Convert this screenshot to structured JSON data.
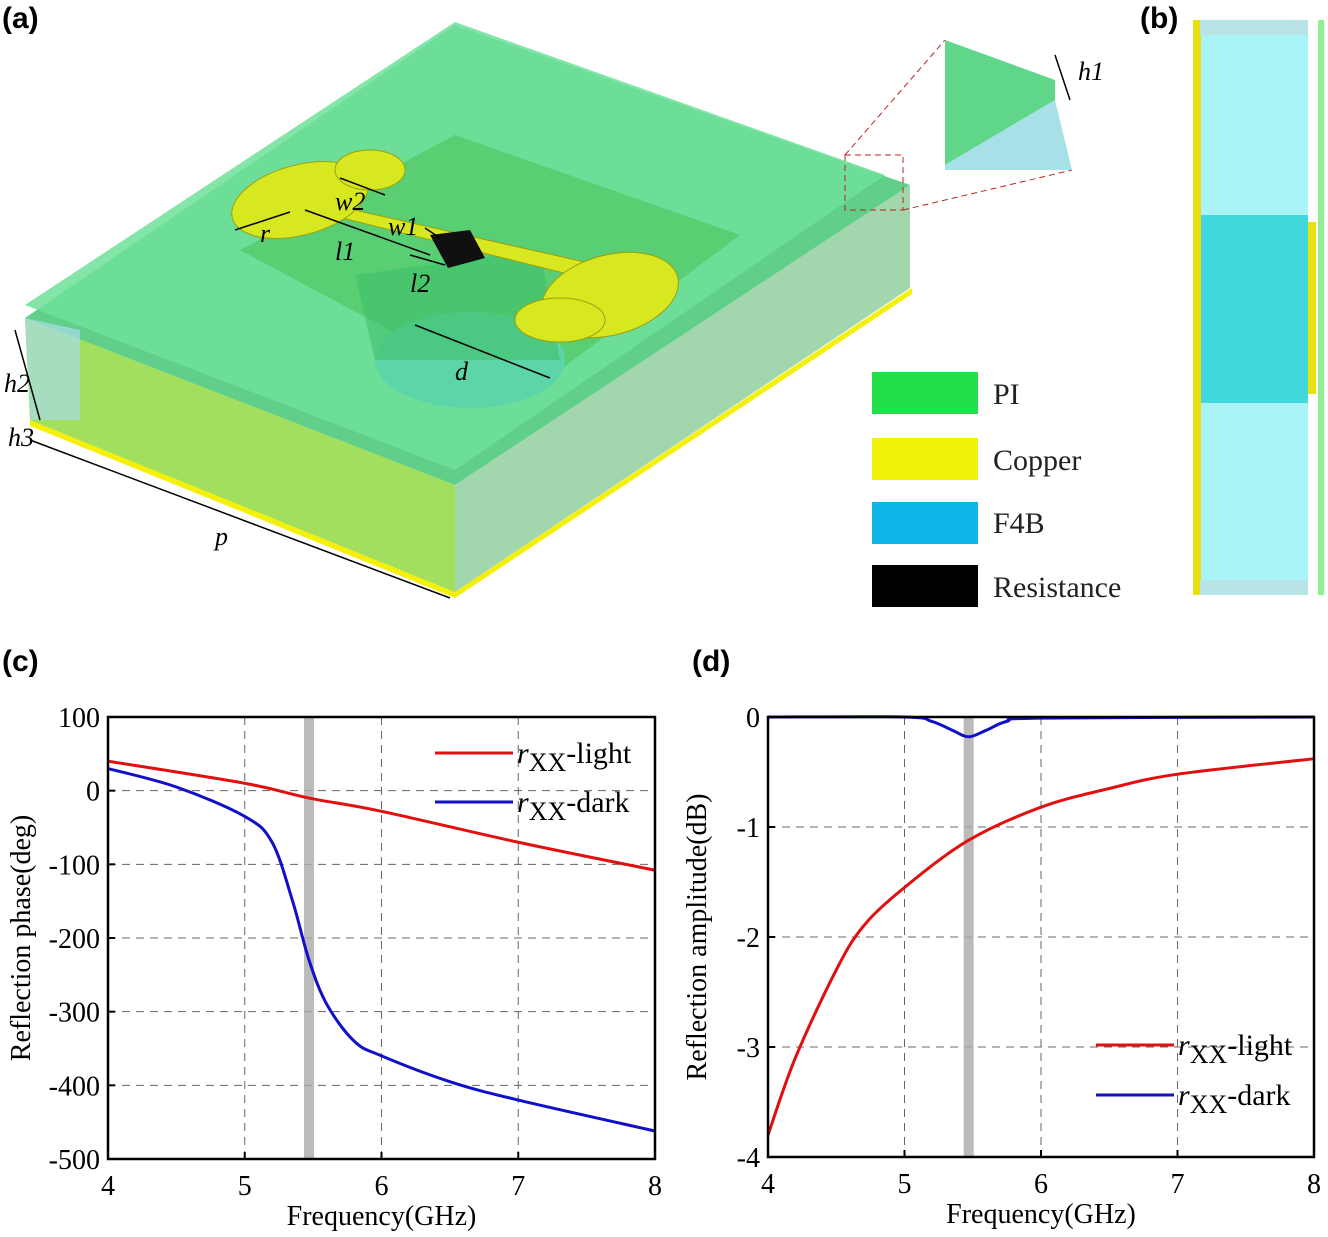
{
  "panels": {
    "a": "(a)",
    "b": "(b)",
    "c": "(c)",
    "d": "(d)"
  },
  "diagram": {
    "dimensions": [
      "w2",
      "w1",
      "r",
      "l1",
      "l2",
      "d",
      "h1",
      "h2",
      "h3",
      "p"
    ],
    "legend": [
      {
        "label": "PI",
        "color": "#22e04a"
      },
      {
        "label": "Copper",
        "color": "#f2f20a"
      },
      {
        "label": "F4B",
        "color": "#0fb4e8"
      },
      {
        "label": "Resistance",
        "color": "#000000"
      }
    ]
  },
  "chart_data": [
    {
      "type": "line",
      "xlabel": "Frequency(GHz)",
      "ylabel": "Reflection phase(deg)",
      "xlim": [
        4,
        8
      ],
      "ylim": [
        -500,
        100
      ],
      "xticks": [
        "4",
        "5",
        "6",
        "7",
        "8"
      ],
      "yticks": [
        "100",
        "0",
        "-100",
        "-200",
        "-300",
        "-400",
        "-500"
      ],
      "grid": true,
      "legend_position": "top-right",
      "highlight_band_x": 5.47,
      "series": [
        {
          "name": "rxx-light",
          "sub": "XX",
          "prefix": "r",
          "suffix": "-light",
          "color": "#e01010",
          "x": [
            4,
            5,
            5.47,
            6,
            7,
            8
          ],
          "y": [
            40,
            10,
            -10,
            -28,
            -70,
            -108
          ]
        },
        {
          "name": "rxx-dark",
          "sub": "XX",
          "prefix": "r",
          "suffix": "-dark",
          "color": "#1010c8",
          "x": [
            4,
            4.5,
            5,
            5.2,
            5.35,
            5.47,
            5.6,
            5.8,
            6,
            6.5,
            7,
            8
          ],
          "y": [
            30,
            5,
            -35,
            -70,
            -150,
            -230,
            -290,
            -340,
            -360,
            -395,
            -420,
            -462
          ]
        }
      ]
    },
    {
      "type": "line",
      "xlabel": "Frequency(GHz)",
      "ylabel": "Reflection amplitude(dB)",
      "xlim": [
        4,
        8
      ],
      "ylim": [
        -4,
        0
      ],
      "xticks": [
        "4",
        "5",
        "6",
        "7",
        "8"
      ],
      "yticks": [
        "0",
        "-1",
        "-2",
        "-3",
        "-4"
      ],
      "grid": true,
      "legend_position": "bottom-right",
      "highlight_band_x": 5.47,
      "series": [
        {
          "name": "rxx-light",
          "sub": "XX",
          "prefix": "r",
          "suffix": "-light",
          "color": "#e01010",
          "x": [
            4,
            4.2,
            4.5,
            4.7,
            5,
            5.47,
            6,
            6.5,
            7,
            8
          ],
          "y": [
            -3.8,
            -3.1,
            -2.3,
            -1.9,
            -1.55,
            -1.12,
            -0.82,
            -0.65,
            -0.52,
            -0.38
          ]
        },
        {
          "name": "rxx-dark",
          "sub": "XX",
          "prefix": "r",
          "suffix": "-dark",
          "color": "#1010c8",
          "x": [
            4,
            5,
            5.2,
            5.35,
            5.47,
            5.6,
            5.75,
            6,
            8
          ],
          "y": [
            0,
            0,
            -0.04,
            -0.12,
            -0.18,
            -0.12,
            -0.04,
            -0.01,
            0
          ]
        }
      ]
    }
  ]
}
